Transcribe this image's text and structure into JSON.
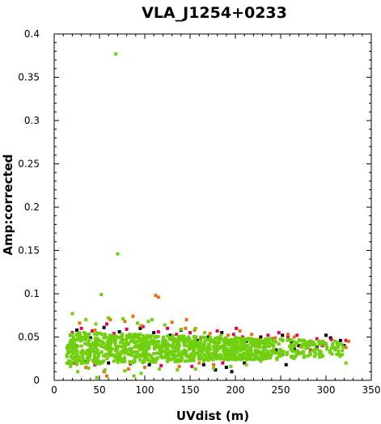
{
  "chart_data": {
    "type": "scatter",
    "title": "VLA_J1254+0233",
    "xlabel": "UVdist (m)",
    "ylabel": "Amp:corrected",
    "xlim": [
      0,
      350
    ],
    "ylim": [
      0,
      0.4
    ],
    "x_ticks": [
      "0",
      "50",
      "100",
      "150",
      "200",
      "250",
      "300",
      "350"
    ],
    "y_ticks": [
      "0",
      "0.05",
      "0.1",
      "0.15",
      "0.2",
      "0.25",
      "0.3",
      "0.35",
      "0.4"
    ],
    "grid": false,
    "legend": "none",
    "colors": {
      "black": "#000000",
      "magenta": "#e6005a",
      "orange": "#e87010",
      "green": "#70d010"
    },
    "series": [
      {
        "color": "#000000",
        "points": [
          [
            18,
            0.052
          ],
          [
            25,
            0.058
          ],
          [
            40,
            0.049
          ],
          [
            55,
            0.061
          ],
          [
            72,
            0.056
          ],
          [
            88,
            0.05
          ],
          [
            95,
            0.06
          ],
          [
            110,
            0.055
          ],
          [
            128,
            0.052
          ],
          [
            140,
            0.058
          ],
          [
            158,
            0.046
          ],
          [
            170,
            0.05
          ],
          [
            178,
            0.012
          ],
          [
            185,
            0.055
          ],
          [
            196,
            0.01
          ],
          [
            212,
            0.045
          ],
          [
            228,
            0.05
          ],
          [
            240,
            0.048
          ],
          [
            252,
            0.052
          ],
          [
            262,
            0.044
          ],
          [
            270,
            0.04
          ],
          [
            283,
            0.045
          ],
          [
            300,
            0.052
          ],
          [
            305,
            0.049
          ],
          [
            230,
            0.03
          ],
          [
            245,
            0.035
          ],
          [
            210,
            0.02
          ],
          [
            190,
            0.015
          ],
          [
            165,
            0.018
          ],
          [
            300,
            0.042
          ],
          [
            290,
            0.038
          ],
          [
            265,
            0.036
          ],
          [
            256,
            0.018
          ],
          [
            320,
            0.04
          ],
          [
            316,
            0.046
          ],
          [
            105,
            0.018
          ],
          [
            60,
            0.02
          ],
          [
            35,
            0.021
          ]
        ]
      },
      {
        "color": "#e6005a",
        "points": [
          [
            20,
            0.055
          ],
          [
            30,
            0.06
          ],
          [
            42,
            0.057
          ],
          [
            58,
            0.065
          ],
          [
            66,
            0.054
          ],
          [
            80,
            0.059
          ],
          [
            98,
            0.062
          ],
          [
            115,
            0.056
          ],
          [
            125,
            0.06
          ],
          [
            135,
            0.053
          ],
          [
            150,
            0.055
          ],
          [
            162,
            0.049
          ],
          [
            180,
            0.057
          ],
          [
            198,
            0.053
          ],
          [
            208,
            0.05
          ],
          [
            220,
            0.047
          ],
          [
            236,
            0.052
          ],
          [
            248,
            0.055
          ],
          [
            258,
            0.05
          ],
          [
            268,
            0.052
          ],
          [
            275,
            0.046
          ],
          [
            290,
            0.048
          ],
          [
            306,
            0.047
          ],
          [
            322,
            0.046
          ],
          [
            228,
            0.025
          ],
          [
            252,
            0.03
          ],
          [
            270,
            0.032
          ],
          [
            283,
            0.035
          ],
          [
            296,
            0.04
          ],
          [
            186,
            0.02
          ],
          [
            152,
            0.016
          ],
          [
            118,
            0.017
          ],
          [
            84,
            0.019
          ],
          [
            22,
            0.02
          ],
          [
            45,
            0.018
          ],
          [
            262,
            0.027
          ],
          [
            241,
            0.033
          ],
          [
            201,
            0.06
          ]
        ]
      },
      {
        "color": "#e87010",
        "points": [
          [
            28,
            0.066
          ],
          [
            45,
            0.058
          ],
          [
            62,
            0.07
          ],
          [
            78,
            0.068
          ],
          [
            87,
            0.074
          ],
          [
            96,
            0.063
          ],
          [
            112,
            0.098
          ],
          [
            115,
            0.096
          ],
          [
            130,
            0.067
          ],
          [
            145,
            0.06
          ],
          [
            155,
            0.058
          ],
          [
            172,
            0.054
          ],
          [
            192,
            0.052
          ],
          [
            205,
            0.057
          ],
          [
            218,
            0.053
          ],
          [
            226,
            0.047
          ],
          [
            244,
            0.049
          ],
          [
            258,
            0.053
          ],
          [
            265,
            0.05
          ],
          [
            282,
            0.045
          ],
          [
            296,
            0.045
          ],
          [
            325,
            0.045
          ],
          [
            322,
            0.038
          ],
          [
            82,
            0.013
          ],
          [
            55,
            0.01
          ],
          [
            35,
            0.015
          ],
          [
            100,
            0.015
          ],
          [
            138,
            0.016
          ],
          [
            160,
            0.02
          ],
          [
            176,
            0.018
          ],
          [
            235,
            0.028
          ],
          [
            250,
            0.034
          ],
          [
            272,
            0.039
          ],
          [
            287,
            0.041
          ],
          [
            58,
            0.005
          ],
          [
            75,
            0.052
          ],
          [
            212,
            0.04
          ],
          [
            146,
            0.07
          ]
        ]
      },
      {
        "color": "#70d010",
        "points": [
          [
            68,
            0.377
          ],
          [
            70,
            0.146
          ],
          [
            52,
            0.099
          ],
          [
            20,
            0.077
          ],
          [
            35,
            0.07
          ],
          [
            46,
            0.065
          ],
          [
            60,
            0.072
          ],
          [
            76,
            0.071
          ],
          [
            92,
            0.066
          ],
          [
            104,
            0.068
          ],
          [
            122,
            0.064
          ],
          [
            140,
            0.059
          ],
          [
            166,
            0.055
          ],
          [
            184,
            0.052
          ],
          [
            200,
            0.05
          ],
          [
            215,
            0.048
          ],
          [
            233,
            0.044
          ],
          [
            248,
            0.042
          ],
          [
            262,
            0.04
          ],
          [
            278,
            0.037
          ],
          [
            293,
            0.034
          ],
          [
            312,
            0.03
          ],
          [
            322,
            0.02
          ],
          [
            280,
            0.028
          ],
          [
            264,
            0.026
          ],
          [
            246,
            0.024
          ],
          [
            228,
            0.022
          ],
          [
            212,
            0.018
          ],
          [
            195,
            0.016
          ],
          [
            176,
            0.014
          ],
          [
            156,
            0.013
          ],
          [
            136,
            0.012
          ],
          [
            116,
            0.013
          ],
          [
            96,
            0.008
          ],
          [
            78,
            0.011
          ],
          [
            56,
            0.012
          ],
          [
            38,
            0.014
          ],
          [
            26,
            0.01
          ],
          [
            88,
            0.005
          ],
          [
            18,
            0.016
          ],
          [
            47,
            0.003
          ],
          [
            108,
            0.07
          ],
          [
            156,
            0.06
          ]
        ],
        "band": {
          "x": [
            14,
            320
          ],
          "y_low": [
            0.018,
            0.027
          ],
          "y_high": [
            0.056,
            0.045
          ]
        }
      }
    ]
  }
}
